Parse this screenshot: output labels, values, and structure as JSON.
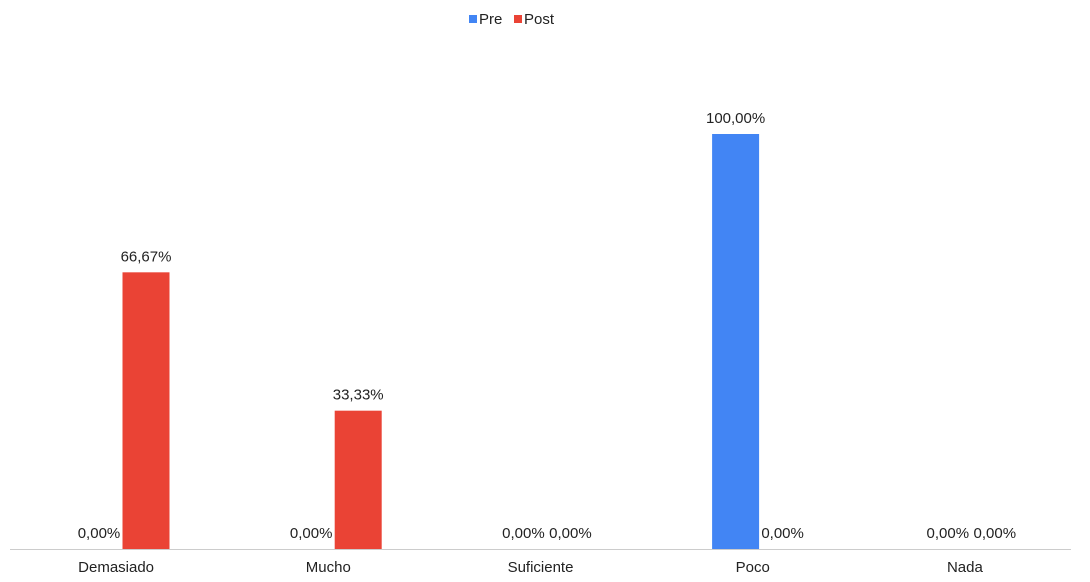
{
  "chart_data": {
    "type": "bar",
    "categories": [
      "Demasiado",
      "Mucho",
      "Suficiente",
      "Poco",
      "Nada"
    ],
    "series": [
      {
        "name": "Pre",
        "color": "#4285f4",
        "values": [
          0,
          0,
          0,
          100,
          0
        ],
        "labels": [
          "0,00%",
          "0,00%",
          "0,00%",
          "100,00%",
          "0,00%"
        ]
      },
      {
        "name": "Post",
        "color": "#ea4335",
        "values": [
          66.67,
          33.33,
          0,
          0,
          0
        ],
        "labels": [
          "66,67%",
          "33,33%",
          "0,00%",
          "0,00%",
          "0,00%"
        ]
      }
    ],
    "ylim": [
      0,
      100
    ],
    "grid": false,
    "legend_position": "top-center",
    "axis_color": "#cccccc"
  }
}
